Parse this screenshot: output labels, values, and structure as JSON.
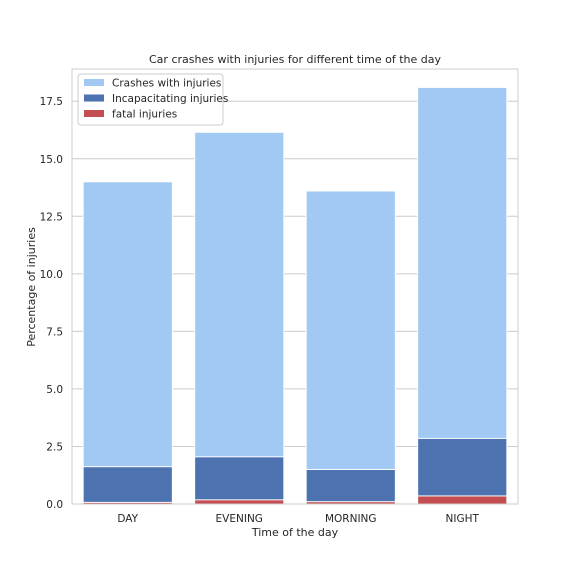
{
  "chart_data": {
    "type": "bar",
    "title": "Car crashes with injuries for different time of the day",
    "xlabel": "Time of the day",
    "ylabel": "Percentage of injuries",
    "categories": [
      "DAY",
      "EVENING",
      "MORNING",
      "NIGHT"
    ],
    "series": [
      {
        "name": "Crashes with injuries",
        "values": [
          14.0,
          16.15,
          13.6,
          18.1
        ],
        "color": "#a1c9f4"
      },
      {
        "name": "Incapacitating injuries",
        "values": [
          1.62,
          2.05,
          1.5,
          2.85
        ],
        "color": "#4c72b0"
      },
      {
        "name": "fatal injuries",
        "values": [
          0.07,
          0.18,
          0.1,
          0.35
        ],
        "color": "#c44e52"
      }
    ],
    "ylim": [
      0,
      18.9
    ],
    "yticks": [
      "0.0",
      "2.5",
      "5.0",
      "7.5",
      "10.0",
      "12.5",
      "15.0",
      "17.5"
    ],
    "ytick_values": [
      0,
      2.5,
      5,
      7.5,
      10,
      12.5,
      15,
      17.5
    ],
    "grid": "horizontal",
    "legend_position": "top-left"
  }
}
